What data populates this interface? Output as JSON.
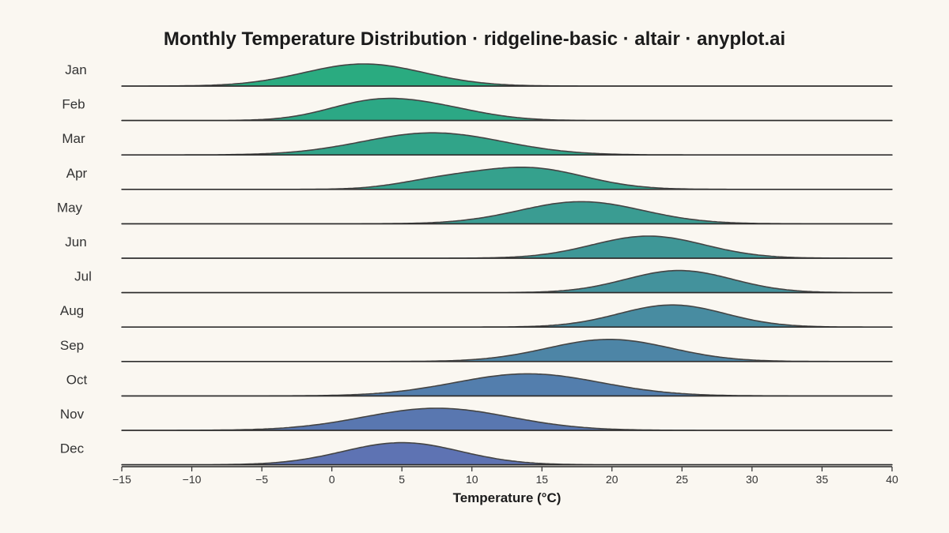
{
  "chart_data": {
    "type": "ridgeline",
    "title": "Monthly Temperature Distribution · ridgeline-basic · altair · anyplot.ai",
    "xlabel": "Temperature (°C)",
    "xlim": [
      -15,
      40
    ],
    "x_ticks": [
      -15,
      -10,
      -5,
      0,
      5,
      10,
      15,
      20,
      25,
      30,
      35,
      40
    ],
    "x_tick_labels": [
      "−15",
      "−10",
      "−5",
      "0",
      "5",
      "10",
      "15",
      "20",
      "25",
      "30",
      "35",
      "40"
    ],
    "grid": false,
    "legend": "none",
    "series": [
      {
        "name": "Jan",
        "color": "#2aab80",
        "components": [
          {
            "mean": 2.3,
            "sd": 4.3,
            "weight": 1.0
          }
        ]
      },
      {
        "name": "Feb",
        "color": "#2ca885",
        "components": [
          {
            "mean": 2.5,
            "sd": 3.2,
            "weight": 0.5
          },
          {
            "mean": 7.0,
            "sd": 3.6,
            "weight": 0.5
          }
        ]
      },
      {
        "name": "Mar",
        "color": "#31a489",
        "components": [
          {
            "mean": 7.2,
            "sd": 5.0,
            "weight": 1.0
          }
        ]
      },
      {
        "name": "Apr",
        "color": "#35a18d",
        "components": [
          {
            "mean": 14.0,
            "sd": 4.0,
            "weight": 0.8
          },
          {
            "mean": 7.5,
            "sd": 3.0,
            "weight": 0.2
          }
        ]
      },
      {
        "name": "May",
        "color": "#3a9c92",
        "components": [
          {
            "mean": 17.8,
            "sd": 4.4,
            "weight": 1.0
          }
        ]
      },
      {
        "name": "Jun",
        "color": "#3e9797",
        "components": [
          {
            "mean": 22.6,
            "sd": 4.0,
            "weight": 1.0
          }
        ]
      },
      {
        "name": "Jul",
        "color": "#43929c",
        "components": [
          {
            "mean": 24.8,
            "sd": 3.8,
            "weight": 1.0
          }
        ]
      },
      {
        "name": "Aug",
        "color": "#488ca1",
        "components": [
          {
            "mean": 24.3,
            "sd": 3.8,
            "weight": 1.0
          }
        ]
      },
      {
        "name": "Sep",
        "color": "#4d85a6",
        "components": [
          {
            "mean": 19.8,
            "sd": 4.4,
            "weight": 1.0
          }
        ]
      },
      {
        "name": "Oct",
        "color": "#537ead",
        "components": [
          {
            "mean": 14.0,
            "sd": 5.2,
            "weight": 1.0
          }
        ]
      },
      {
        "name": "Nov",
        "color": "#5977b0",
        "components": [
          {
            "mean": 7.5,
            "sd": 5.2,
            "weight": 1.0
          }
        ]
      },
      {
        "name": "Dec",
        "color": "#5e73b3",
        "components": [
          {
            "mean": 5.0,
            "sd": 4.2,
            "weight": 1.0
          }
        ]
      }
    ],
    "fill_opacity": 1.0,
    "stroke_color": "#444444",
    "baseline_color": "#2b2b2b",
    "background": "#faf7f1"
  }
}
